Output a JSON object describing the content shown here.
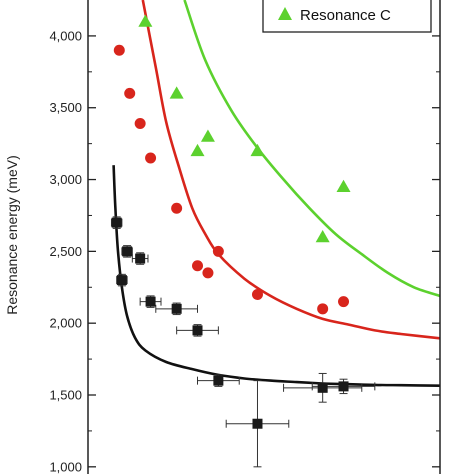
{
  "chart_data": {
    "type": "scatter",
    "title": "",
    "xlabel": "",
    "ylabel": "Resonance energy (meV)",
    "ylim": [
      950,
      4250
    ],
    "xlim": [
      0,
      13.5
    ],
    "grid": false,
    "y_ticks": [
      1000,
      1500,
      2000,
      2500,
      3000,
      3500,
      4000
    ],
    "y_tick_labels": [
      "1,000",
      "1,500",
      "2,000",
      "2,500",
      "3,000",
      "3,500",
      "4,000"
    ],
    "legend": {
      "placement": "top-right",
      "entries": [
        "Resonance C"
      ]
    },
    "series": [
      {
        "name": "Resonance C",
        "marker": "triangle",
        "color": "#5cd12e",
        "points": [
          {
            "x": 2.2,
            "y": 4100
          },
          {
            "x": 3.4,
            "y": 3600
          },
          {
            "x": 4.2,
            "y": 3200
          },
          {
            "x": 4.6,
            "y": 3300
          },
          {
            "x": 6.5,
            "y": 3200
          },
          {
            "x": 9.0,
            "y": 2600
          },
          {
            "x": 9.8,
            "y": 2950
          }
        ]
      },
      {
        "marker": "circle",
        "color": "#d8251c",
        "points": [
          {
            "x": 1.2,
            "y": 3900
          },
          {
            "x": 1.6,
            "y": 3600
          },
          {
            "x": 2.0,
            "y": 3390
          },
          {
            "x": 2.4,
            "y": 3150
          },
          {
            "x": 3.4,
            "y": 2800
          },
          {
            "x": 4.2,
            "y": 2400
          },
          {
            "x": 4.6,
            "y": 2350
          },
          {
            "x": 5.0,
            "y": 2500
          },
          {
            "x": 6.5,
            "y": 2200
          },
          {
            "x": 9.0,
            "y": 2100
          },
          {
            "x": 9.8,
            "y": 2150
          }
        ]
      },
      {
        "marker": "square",
        "color": "#1a1a1a",
        "points": [
          {
            "x": 1.1,
            "y": 2700,
            "xerr": 0.2,
            "yerr": 40
          },
          {
            "x": 1.3,
            "y": 2300,
            "xerr": 0.2,
            "yerr": 40
          },
          {
            "x": 1.5,
            "y": 2500,
            "xerr": 0.2,
            "yerr": 40
          },
          {
            "x": 2.0,
            "y": 2450,
            "xerr": 0.3,
            "yerr": 40
          },
          {
            "x": 2.4,
            "y": 2150,
            "xerr": 0.4,
            "yerr": 40
          },
          {
            "x": 3.4,
            "y": 2100,
            "xerr": 0.8,
            "yerr": 40
          },
          {
            "x": 4.2,
            "y": 1950,
            "xerr": 0.8,
            "yerr": 40
          },
          {
            "x": 5.0,
            "y": 1600,
            "xerr": 0.8,
            "yerr": 40
          },
          {
            "x": 6.5,
            "y": 1300,
            "xerr": 1.2,
            "yerr": 300
          },
          {
            "x": 9.0,
            "y": 1550,
            "xerr": 1.5,
            "yerr": 100
          },
          {
            "x": 9.8,
            "y": 1560,
            "xerr": 1.2,
            "yerr": 50
          }
        ]
      }
    ],
    "fit_curves": [
      {
        "color": "#5cd12e",
        "points": [
          [
            3.7,
            4250
          ],
          [
            4.5,
            3830
          ],
          [
            5.5,
            3480
          ],
          [
            6.5,
            3220
          ],
          [
            7.5,
            3000
          ],
          [
            8.5,
            2800
          ],
          [
            9.5,
            2620
          ],
          [
            10.5,
            2480
          ],
          [
            11.5,
            2350
          ],
          [
            12.5,
            2250
          ],
          [
            13.5,
            2190
          ]
        ]
      },
      {
        "color": "#d8251c",
        "points": [
          [
            2.1,
            4250
          ],
          [
            2.6,
            3780
          ],
          [
            3.0,
            3400
          ],
          [
            3.5,
            3080
          ],
          [
            4.0,
            2800
          ],
          [
            4.5,
            2620
          ],
          [
            5.0,
            2480
          ],
          [
            6.0,
            2310
          ],
          [
            7.0,
            2190
          ],
          [
            8.0,
            2100
          ],
          [
            9.0,
            2030
          ],
          [
            10.0,
            1990
          ],
          [
            11.0,
            1950
          ],
          [
            12.0,
            1925
          ],
          [
            13.5,
            1895
          ]
        ]
      },
      {
        "color": "#111111",
        "points": [
          [
            0.98,
            3100
          ],
          [
            1.05,
            2800
          ],
          [
            1.15,
            2500
          ],
          [
            1.3,
            2250
          ],
          [
            1.5,
            2050
          ],
          [
            1.8,
            1900
          ],
          [
            2.2,
            1810
          ],
          [
            3.0,
            1730
          ],
          [
            4.0,
            1680
          ],
          [
            5.0,
            1640
          ],
          [
            6.0,
            1615
          ],
          [
            7.0,
            1600
          ],
          [
            8.0,
            1590
          ],
          [
            9.0,
            1580
          ],
          [
            10.0,
            1575
          ],
          [
            11.0,
            1570
          ],
          [
            12.0,
            1568
          ],
          [
            13.5,
            1565
          ]
        ]
      }
    ]
  }
}
